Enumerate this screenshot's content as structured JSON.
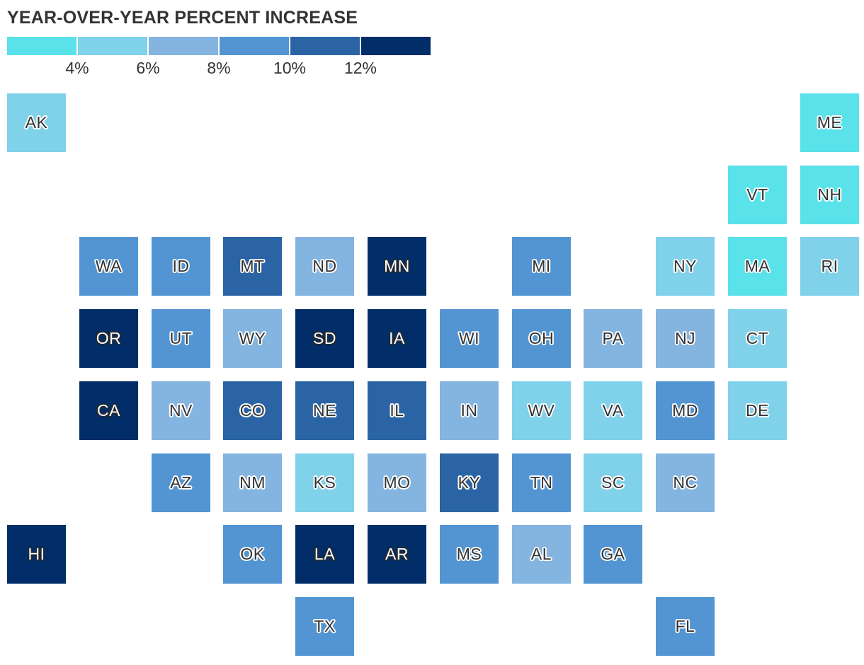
{
  "chart_data": {
    "type": "tile-map",
    "title": "YEAR-OVER-YEAR PERCENT INCREASE",
    "legend": {
      "colors": [
        "#59e2e9",
        "#80d1ea",
        "#84b4e0",
        "#5295d2",
        "#2b64a4",
        "#012e69"
      ],
      "thresholds": [
        4,
        6,
        8,
        10,
        12
      ],
      "tick_labels": [
        "4%",
        "6%",
        "8%",
        "10%",
        "12%"
      ]
    },
    "states": [
      {
        "abbr": "AK",
        "col": 0,
        "row": 0,
        "bin": 1
      },
      {
        "abbr": "ME",
        "col": 11,
        "row": 0,
        "bin": 0
      },
      {
        "abbr": "VT",
        "col": 10,
        "row": 1,
        "bin": 0
      },
      {
        "abbr": "NH",
        "col": 11,
        "row": 1,
        "bin": 0
      },
      {
        "abbr": "WA",
        "col": 1,
        "row": 2,
        "bin": 3
      },
      {
        "abbr": "ID",
        "col": 2,
        "row": 2,
        "bin": 3
      },
      {
        "abbr": "MT",
        "col": 3,
        "row": 2,
        "bin": 4
      },
      {
        "abbr": "ND",
        "col": 4,
        "row": 2,
        "bin": 2
      },
      {
        "abbr": "MN",
        "col": 5,
        "row": 2,
        "bin": 5
      },
      {
        "abbr": "MI",
        "col": 7,
        "row": 2,
        "bin": 3
      },
      {
        "abbr": "NY",
        "col": 9,
        "row": 2,
        "bin": 1
      },
      {
        "abbr": "MA",
        "col": 10,
        "row": 2,
        "bin": 0
      },
      {
        "abbr": "RI",
        "col": 11,
        "row": 2,
        "bin": 1
      },
      {
        "abbr": "OR",
        "col": 1,
        "row": 3,
        "bin": 5
      },
      {
        "abbr": "UT",
        "col": 2,
        "row": 3,
        "bin": 3
      },
      {
        "abbr": "WY",
        "col": 3,
        "row": 3,
        "bin": 2
      },
      {
        "abbr": "SD",
        "col": 4,
        "row": 3,
        "bin": 5
      },
      {
        "abbr": "IA",
        "col": 5,
        "row": 3,
        "bin": 5
      },
      {
        "abbr": "WI",
        "col": 6,
        "row": 3,
        "bin": 3
      },
      {
        "abbr": "OH",
        "col": 7,
        "row": 3,
        "bin": 3
      },
      {
        "abbr": "PA",
        "col": 8,
        "row": 3,
        "bin": 2
      },
      {
        "abbr": "NJ",
        "col": 9,
        "row": 3,
        "bin": 2
      },
      {
        "abbr": "CT",
        "col": 10,
        "row": 3,
        "bin": 1
      },
      {
        "abbr": "CA",
        "col": 1,
        "row": 4,
        "bin": 5
      },
      {
        "abbr": "NV",
        "col": 2,
        "row": 4,
        "bin": 2
      },
      {
        "abbr": "CO",
        "col": 3,
        "row": 4,
        "bin": 4
      },
      {
        "abbr": "NE",
        "col": 4,
        "row": 4,
        "bin": 4
      },
      {
        "abbr": "IL",
        "col": 5,
        "row": 4,
        "bin": 4
      },
      {
        "abbr": "IN",
        "col": 6,
        "row": 4,
        "bin": 2
      },
      {
        "abbr": "WV",
        "col": 7,
        "row": 4,
        "bin": 1
      },
      {
        "abbr": "VA",
        "col": 8,
        "row": 4,
        "bin": 1
      },
      {
        "abbr": "MD",
        "col": 9,
        "row": 4,
        "bin": 3
      },
      {
        "abbr": "DE",
        "col": 10,
        "row": 4,
        "bin": 1
      },
      {
        "abbr": "AZ",
        "col": 2,
        "row": 5,
        "bin": 3
      },
      {
        "abbr": "NM",
        "col": 3,
        "row": 5,
        "bin": 2
      },
      {
        "abbr": "KS",
        "col": 4,
        "row": 5,
        "bin": 1
      },
      {
        "abbr": "MO",
        "col": 5,
        "row": 5,
        "bin": 2
      },
      {
        "abbr": "KY",
        "col": 6,
        "row": 5,
        "bin": 4
      },
      {
        "abbr": "TN",
        "col": 7,
        "row": 5,
        "bin": 3
      },
      {
        "abbr": "SC",
        "col": 8,
        "row": 5,
        "bin": 1
      },
      {
        "abbr": "NC",
        "col": 9,
        "row": 5,
        "bin": 2
      },
      {
        "abbr": "HI",
        "col": 0,
        "row": 6,
        "bin": 5
      },
      {
        "abbr": "OK",
        "col": 3,
        "row": 6,
        "bin": 3
      },
      {
        "abbr": "LA",
        "col": 4,
        "row": 6,
        "bin": 5
      },
      {
        "abbr": "AR",
        "col": 5,
        "row": 6,
        "bin": 5
      },
      {
        "abbr": "MS",
        "col": 6,
        "row": 6,
        "bin": 3
      },
      {
        "abbr": "AL",
        "col": 7,
        "row": 6,
        "bin": 2
      },
      {
        "abbr": "GA",
        "col": 8,
        "row": 6,
        "bin": 3
      },
      {
        "abbr": "TX",
        "col": 4,
        "row": 7,
        "bin": 3
      },
      {
        "abbr": "FL",
        "col": 9,
        "row": 7,
        "bin": 3
      }
    ]
  }
}
